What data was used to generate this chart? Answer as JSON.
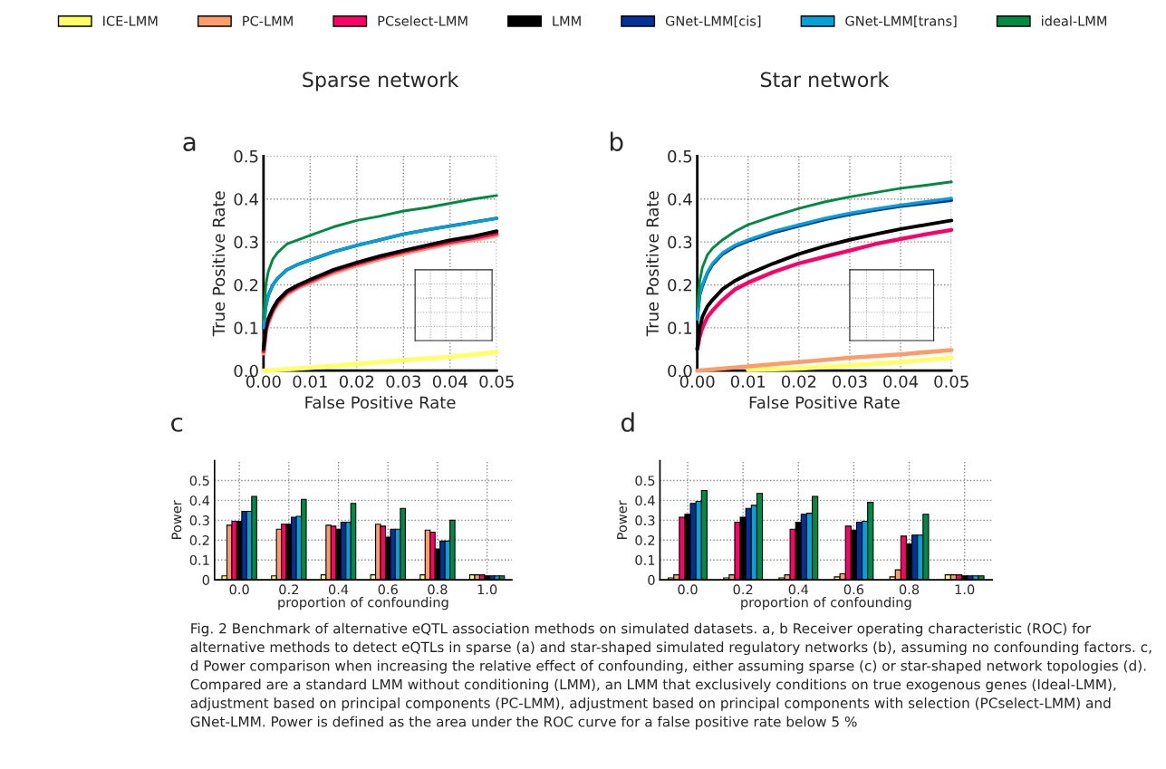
{
  "chart_data": [
    {
      "type": "line",
      "title": "Sparse network",
      "xlabel": "False Positive Rate",
      "ylabel": "True Positive Rate",
      "legend": "top",
      "grid": true,
      "xlim": [
        0,
        0.05
      ],
      "ylim": [
        0,
        0.5
      ],
      "xticks": [
        {
          "value": 0,
          "label": "0.00"
        },
        {
          "value": 0.01,
          "label": "0.01"
        },
        {
          "value": 0.02,
          "label": "0.02"
        },
        {
          "value": 0.03,
          "label": "0.03"
        },
        {
          "value": 0.04,
          "label": "0.04"
        },
        {
          "value": 0.05,
          "label": "0.05"
        }
      ],
      "yticks": [
        {
          "value": 0,
          "label": "0.0"
        },
        0.1,
        0.2,
        0.3,
        0.4,
        0.5
      ],
      "annotations": [
        "a",
        "Fig. 2 Benchmark of alternative eQTL association methods on simulated datasets. a, b Receiver operating characteristic (ROC) for alternative methods to detect eQTLs in sparse (a) and star-shaped simulated regulatory networks (b), assuming no confounding factors. c, d Power comparison when increasing the relative effect of confounding, either assuming sparse (c) or star-shaped network topologies (d). Compared are a standard LMM without conditioning (LMM), an LMM that exclusively conditions on true exogenous genes (Ideal-LMM), adjustment based on principal components (PC-LMM), adjustment based on principal components with selection (PCselect-LMM) and GNet-LMM. Power is defined as the area under the ROC curve for a false positive rate below 5 %"
      ],
      "x": [
        0,
        0.0005,
        0.001,
        0.002,
        0.003,
        0.005,
        0.0075,
        0.01,
        0.015,
        0.02,
        0.025,
        0.03,
        0.035,
        0.04,
        0.045,
        0.05
      ],
      "series": [
        {
          "name": "ICE-LMM",
          "color": "#ffff66",
          "x": [
            0,
            0.01,
            0.02,
            0.03,
            0.04,
            0.05
          ],
          "values": [
            0,
            0.007,
            0.015,
            0.024,
            0.032,
            0.043
          ]
        },
        {
          "name": "PC-LMM",
          "color": "#fc9c6b",
          "values": [
            0.04,
            0.09,
            0.11,
            0.137,
            0.155,
            0.178,
            0.194,
            0.205,
            0.228,
            0.245,
            0.26,
            0.273,
            0.285,
            0.296,
            0.305,
            0.315
          ]
        },
        {
          "name": "PCselect-LMM",
          "color": "#ff0066",
          "values": [
            0.045,
            0.095,
            0.115,
            0.141,
            0.159,
            0.182,
            0.197,
            0.209,
            0.232,
            0.249,
            0.264,
            0.277,
            0.289,
            0.3,
            0.309,
            0.32
          ]
        },
        {
          "name": "LMM",
          "color": "#000000",
          "values": [
            0.05,
            0.1,
            0.12,
            0.145,
            0.163,
            0.185,
            0.2,
            0.212,
            0.235,
            0.252,
            0.267,
            0.28,
            0.292,
            0.304,
            0.313,
            0.325
          ]
        },
        {
          "name": "GNet-LMM[cis]",
          "color": "#003399",
          "values": [
            0.1,
            0.15,
            0.175,
            0.2,
            0.215,
            0.235,
            0.248,
            0.258,
            0.277,
            0.292,
            0.305,
            0.318,
            0.328,
            0.337,
            0.346,
            0.355
          ]
        },
        {
          "name": "GNet-LMM[trans]",
          "color": "#00a2d8",
          "values": [
            0.1,
            0.15,
            0.175,
            0.2,
            0.215,
            0.235,
            0.248,
            0.258,
            0.277,
            0.292,
            0.305,
            0.318,
            0.328,
            0.337,
            0.346,
            0.355
          ]
        },
        {
          "name": "ideal-LMM",
          "color": "#008b45",
          "values": [
            0.12,
            0.2,
            0.23,
            0.26,
            0.275,
            0.295,
            0.305,
            0.315,
            0.335,
            0.35,
            0.36,
            0.372,
            0.38,
            0.39,
            0.4,
            0.408
          ]
        }
      ]
    },
    {
      "type": "line",
      "title": "Star network",
      "xlabel": "False Positive Rate",
      "ylabel": "True Positive Rate",
      "grid": true,
      "xlim": [
        0,
        0.05
      ],
      "ylim": [
        0,
        0.5
      ],
      "xticks": [
        {
          "value": 0,
          "label": "0.00"
        },
        {
          "value": 0.01,
          "label": "0.01"
        },
        {
          "value": 0.02,
          "label": "0.02"
        },
        {
          "value": 0.03,
          "label": "0.03"
        },
        {
          "value": 0.04,
          "label": "0.04"
        },
        {
          "value": 0.05,
          "label": "0.05"
        }
      ],
      "yticks": [
        {
          "value": 0,
          "label": "0.0"
        },
        0.1,
        0.2,
        0.3,
        0.4,
        0.5
      ],
      "annotations": [
        "b"
      ],
      "x": [
        0,
        0.0005,
        0.001,
        0.002,
        0.003,
        0.005,
        0.0075,
        0.01,
        0.015,
        0.02,
        0.025,
        0.03,
        0.035,
        0.04,
        0.045,
        0.05
      ],
      "series": [
        {
          "color": "#ffff66",
          "x": [
            0.01,
            0.02,
            0.03,
            0.04,
            0.05
          ],
          "values": [
            0.002,
            0.005,
            0.012,
            0.02,
            0.03
          ]
        },
        {
          "color": "#fc9c6b",
          "x": [
            0,
            0.01,
            0.02,
            0.03,
            0.04,
            0.05
          ],
          "values": [
            0,
            0.01,
            0.02,
            0.03,
            0.038,
            0.048
          ]
        },
        {
          "color": "#ff0066",
          "values": [
            0.05,
            0.08,
            0.1,
            0.125,
            0.14,
            0.165,
            0.19,
            0.205,
            0.23,
            0.25,
            0.265,
            0.28,
            0.295,
            0.307,
            0.318,
            0.328
          ]
        },
        {
          "color": "#000000",
          "values": [
            0.05,
            0.1,
            0.125,
            0.15,
            0.165,
            0.19,
            0.21,
            0.225,
            0.25,
            0.272,
            0.29,
            0.305,
            0.318,
            0.33,
            0.34,
            0.35
          ]
        },
        {
          "color": "#003399",
          "values": [
            0.12,
            0.177,
            0.197,
            0.227,
            0.247,
            0.272,
            0.29,
            0.302,
            0.322,
            0.337,
            0.352,
            0.364,
            0.374,
            0.383,
            0.39,
            0.397
          ]
        },
        {
          "color": "#00a2d8",
          "values": [
            0.12,
            0.18,
            0.2,
            0.23,
            0.25,
            0.275,
            0.293,
            0.305,
            0.325,
            0.34,
            0.355,
            0.367,
            0.377,
            0.386,
            0.394,
            0.402
          ]
        },
        {
          "color": "#008b45",
          "values": [
            0.15,
            0.21,
            0.24,
            0.27,
            0.285,
            0.305,
            0.325,
            0.34,
            0.36,
            0.378,
            0.393,
            0.405,
            0.415,
            0.425,
            0.432,
            0.44
          ]
        }
      ]
    },
    {
      "type": "bar",
      "xlabel": "proportion of confounding",
      "ylabel": "Power",
      "grid": true,
      "ylim": [
        0,
        0.6
      ],
      "yticks": [
        0,
        0.1,
        0.2,
        0.3,
        0.4,
        0.5
      ],
      "annotations": [
        "c"
      ],
      "categories": [
        "0.0",
        "0.2",
        "0.4",
        "0.6",
        "0.8",
        "1.0"
      ],
      "series": [
        {
          "color": "#ffff66",
          "values": [
            0.02,
            0.02,
            0.025,
            0.025,
            0.025,
            0.025
          ]
        },
        {
          "color": "#fc9c6b",
          "values": [
            0.275,
            0.255,
            0.275,
            0.28,
            0.25,
            0.025
          ]
        },
        {
          "color": "#ff0066",
          "values": [
            0.295,
            0.28,
            0.27,
            0.27,
            0.24,
            0.025
          ]
        },
        {
          "color": "#000000",
          "values": [
            0.295,
            0.28,
            0.255,
            0.215,
            0.155,
            0.02
          ]
        },
        {
          "color": "#003399",
          "values": [
            0.345,
            0.315,
            0.29,
            0.255,
            0.195,
            0.02
          ]
        },
        {
          "color": "#00a2d8",
          "values": [
            0.345,
            0.32,
            0.29,
            0.255,
            0.195,
            0.02
          ]
        },
        {
          "color": "#008b45",
          "values": [
            0.42,
            0.405,
            0.385,
            0.36,
            0.3,
            0.02
          ]
        }
      ]
    },
    {
      "type": "bar",
      "xlabel": "proportion of confounding",
      "ylabel": "Power",
      "grid": true,
      "ylim": [
        0,
        0.6
      ],
      "yticks": [
        0,
        0.1,
        0.2,
        0.3,
        0.4,
        0.5
      ],
      "annotations": [
        "d"
      ],
      "categories": [
        "0.0",
        "0.2",
        "0.4",
        "0.6",
        "0.8",
        "1.0"
      ],
      "series": [
        {
          "color": "#ffff66",
          "values": [
            0.01,
            0.01,
            0.01,
            0.015,
            0.015,
            0.025
          ]
        },
        {
          "color": "#fc9c6b",
          "values": [
            0.025,
            0.025,
            0.025,
            0.03,
            0.05,
            0.025
          ]
        },
        {
          "color": "#ff0066",
          "values": [
            0.315,
            0.29,
            0.255,
            0.27,
            0.22,
            0.025
          ]
        },
        {
          "color": "#000000",
          "values": [
            0.33,
            0.315,
            0.29,
            0.25,
            0.18,
            0.02
          ]
        },
        {
          "color": "#003399",
          "values": [
            0.385,
            0.36,
            0.33,
            0.29,
            0.225,
            0.02
          ]
        },
        {
          "color": "#00a2d8",
          "values": [
            0.395,
            0.375,
            0.335,
            0.295,
            0.225,
            0.02
          ]
        },
        {
          "color": "#008b45",
          "values": [
            0.45,
            0.435,
            0.42,
            0.39,
            0.33,
            0.02
          ]
        }
      ]
    }
  ]
}
